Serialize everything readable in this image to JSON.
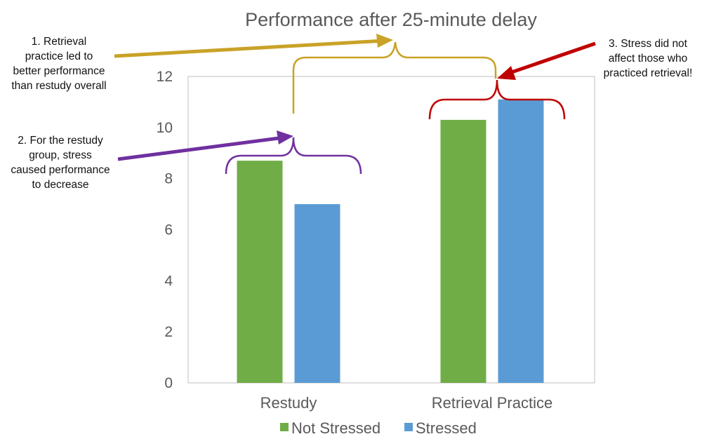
{
  "chart_data": {
    "type": "bar",
    "title": "Performance after 25-minute delay",
    "categories": [
      "Restudy",
      "Retrieval Practice"
    ],
    "series": [
      {
        "name": "Not Stressed",
        "color": "#70ad47",
        "values": [
          8.7,
          10.3
        ]
      },
      {
        "name": "Stressed",
        "color": "#5b9bd5",
        "values": [
          7.0,
          11.1
        ]
      }
    ],
    "ylim": [
      0,
      12
    ],
    "yticks": [
      0,
      2,
      4,
      6,
      8,
      10,
      12
    ],
    "xlabel": "",
    "ylabel": "",
    "legend": "bottom"
  },
  "annotations": [
    {
      "id": "retrieval-overall",
      "lines": [
        "1. Retrieval",
        "practice led to",
        "better performance",
        "than restudy overall"
      ],
      "color": "#c9a227"
    },
    {
      "id": "restudy-stress",
      "lines": [
        "2. For the restudy",
        "group, stress",
        "caused performance",
        "to decrease"
      ],
      "color": "#7030a0"
    },
    {
      "id": "retrieval-stress",
      "lines": [
        "3. Stress did not",
        "affect those who",
        "practiced retrieval!"
      ],
      "color": "#c00000"
    }
  ]
}
